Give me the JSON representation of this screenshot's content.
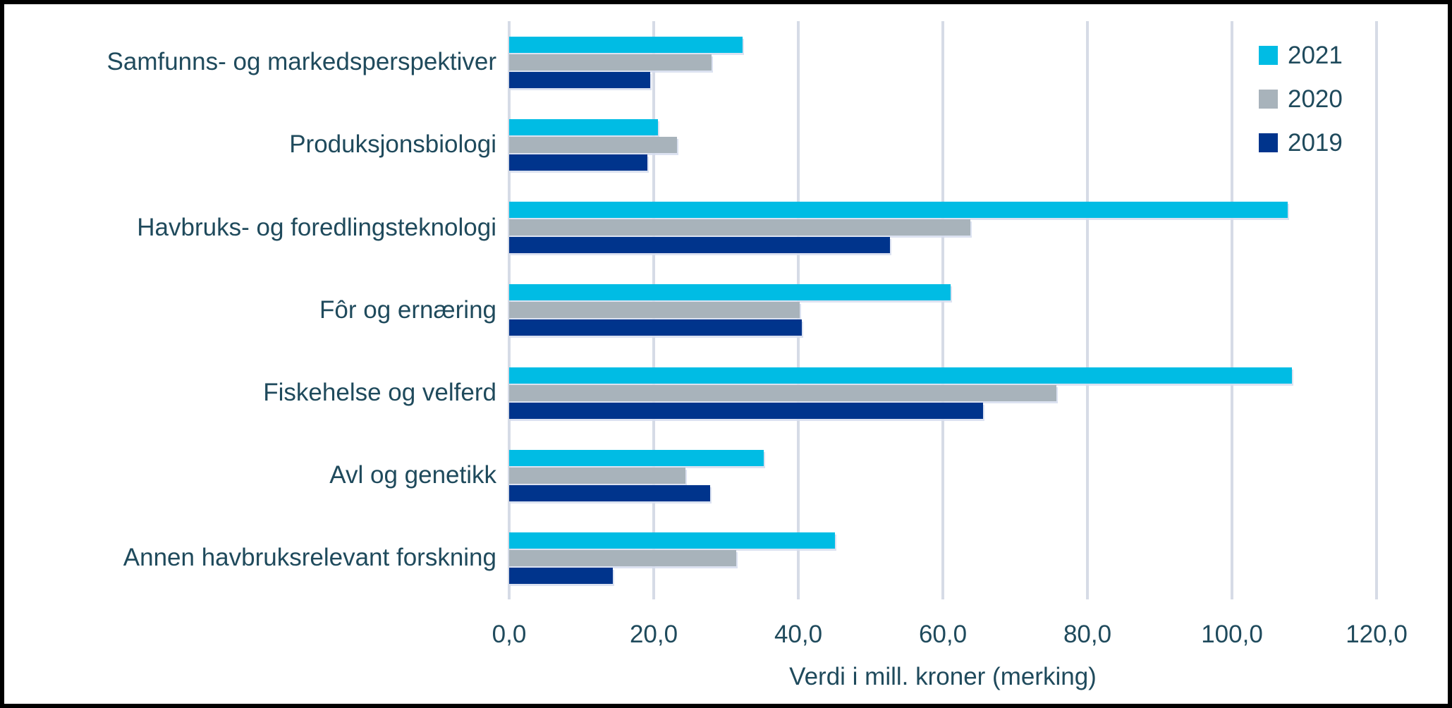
{
  "colors": {
    "text": "#1F4A5C",
    "gridline": "#D6DBE6",
    "background": "#FFFFFF",
    "frame_border": "#000000",
    "series_2021": "#00BCE4",
    "series_2020": "#A8B3BB",
    "series_2019": "#00348C"
  },
  "chart_data": {
    "type": "bar",
    "orientation": "horizontal",
    "title": "",
    "xlabel": "Verdi i mill. kroner (merking)",
    "ylabel": "",
    "xlim": [
      0,
      120
    ],
    "x_tick_labels": [
      "0,0",
      "20,0",
      "40,0",
      "60,0",
      "80,0",
      "100,0",
      "120,0"
    ],
    "grid": true,
    "legend_position": "top-right",
    "categories": [
      "Samfunns- og markedsperspektiver",
      "Produksjonsbiologi",
      "Havbruks- og foredlingsteknologi",
      "Fôr og ernæring",
      "Fiskehelse og velferd",
      "Avl og genetikk",
      "Annen havbruksrelevant forskning"
    ],
    "series": [
      {
        "name": "2021",
        "color": "#00BCE4",
        "values": [
          32.3,
          20.6,
          107.7,
          61.1,
          108.3,
          35.2,
          45.1
        ]
      },
      {
        "name": "2020",
        "color": "#A8B3BB",
        "values": [
          28.0,
          23.2,
          63.8,
          40.2,
          75.7,
          24.4,
          31.4
        ]
      },
      {
        "name": "2019",
        "color": "#00348C",
        "values": [
          19.5,
          19.1,
          52.7,
          40.5,
          65.6,
          27.8,
          14.3
        ]
      }
    ]
  }
}
